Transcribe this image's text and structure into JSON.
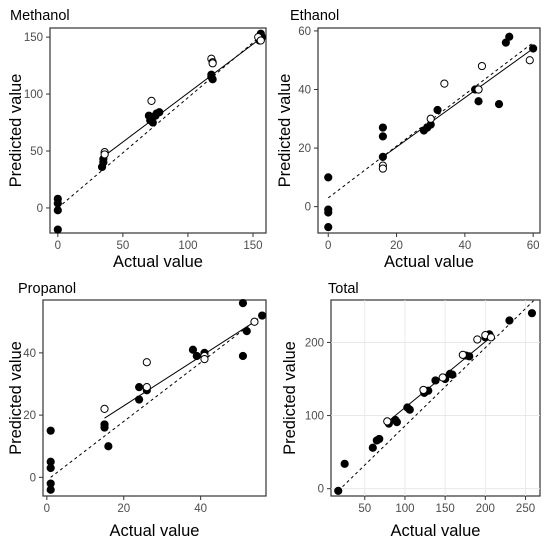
{
  "chart_data": [
    {
      "type": "scatter",
      "title": "Methanol",
      "xlabel": "Actual value",
      "ylabel": "Predicted value",
      "xlim": [
        -6,
        160
      ],
      "ylim": [
        -22,
        158
      ],
      "xticks": [
        0,
        50,
        100,
        150
      ],
      "yticks": [
        0,
        50,
        100,
        150
      ],
      "grid": false,
      "series": [
        {
          "marker": "filled",
          "points": [
            [
              0,
              8
            ],
            [
              0,
              4
            ],
            [
              0,
              -2
            ],
            [
              0,
              -19
            ],
            [
              34,
              36
            ],
            [
              35,
              40
            ],
            [
              35,
              43
            ],
            [
              70,
              81
            ],
            [
              71,
              77
            ],
            [
              73,
              75
            ],
            [
              75,
              81
            ],
            [
              76,
              83
            ],
            [
              78,
              84
            ],
            [
              118,
              117
            ],
            [
              118,
              115
            ],
            [
              119,
              113
            ],
            [
              155,
              150
            ],
            [
              155,
              147
            ],
            [
              156,
              153
            ],
            [
              157,
              150
            ]
          ]
        },
        {
          "marker": "open",
          "points": [
            [
              36,
              49
            ],
            [
              36,
              47
            ],
            [
              72,
              94
            ],
            [
              118,
              131
            ],
            [
              119,
              128
            ],
            [
              119,
              127
            ],
            [
              154,
              150
            ],
            [
              156,
              147
            ]
          ]
        }
      ],
      "lines": [
        {
          "style": "dashed",
          "from": [
            0,
            0
          ],
          "to": [
            157,
            152
          ]
        },
        {
          "style": "solid",
          "from": [
            35,
            45
          ],
          "to": [
            156,
            149
          ]
        }
      ]
    },
    {
      "type": "scatter",
      "title": "Ethanol",
      "xlabel": "Actual value",
      "ylabel": "Predicted value",
      "xlim": [
        -3,
        62
      ],
      "ylim": [
        -9,
        61
      ],
      "xticks": [
        0,
        20,
        40,
        60
      ],
      "yticks": [
        0,
        20,
        40,
        60
      ],
      "grid": false,
      "series": [
        {
          "marker": "filled",
          "points": [
            [
              0,
              10
            ],
            [
              0,
              -1
            ],
            [
              0,
              -2
            ],
            [
              0,
              -7
            ],
            [
              16,
              27
            ],
            [
              16,
              24
            ],
            [
              16,
              17
            ],
            [
              28,
              26
            ],
            [
              29,
              27
            ],
            [
              30,
              28
            ],
            [
              32,
              33
            ],
            [
              43,
              40
            ],
            [
              44,
              40
            ],
            [
              44,
              36
            ],
            [
              50,
              35
            ],
            [
              52,
              56
            ],
            [
              53,
              58
            ],
            [
              60,
              54
            ]
          ]
        },
        {
          "marker": "open",
          "points": [
            [
              16,
              14
            ],
            [
              16,
              13
            ],
            [
              30,
              30
            ],
            [
              34,
              42
            ],
            [
              44,
              40
            ],
            [
              45,
              48
            ],
            [
              59,
              50
            ]
          ]
        }
      ],
      "lines": [
        {
          "style": "dashed",
          "from": [
            0,
            3
          ],
          "to": [
            60,
            56
          ]
        },
        {
          "style": "solid",
          "from": [
            16,
            17
          ],
          "to": [
            60,
            54
          ]
        }
      ]
    },
    {
      "type": "scatter",
      "title": "Propanol",
      "xlabel": "Actual value",
      "ylabel": "Predicted value",
      "xlim": [
        -1,
        57
      ],
      "ylim": [
        -6,
        57
      ],
      "xticks": [
        0,
        20,
        40
      ],
      "yticks": [
        0,
        20,
        40
      ],
      "grid": false,
      "series": [
        {
          "marker": "filled",
          "points": [
            [
              1,
              15
            ],
            [
              1,
              5
            ],
            [
              1,
              3
            ],
            [
              1,
              -2
            ],
            [
              1,
              -4
            ],
            [
              15,
              17
            ],
            [
              15,
              16
            ],
            [
              16,
              10
            ],
            [
              24,
              29
            ],
            [
              24,
              25
            ],
            [
              26,
              28
            ],
            [
              38,
              41
            ],
            [
              39,
              39
            ],
            [
              41,
              40
            ],
            [
              51,
              56
            ],
            [
              51,
              39
            ],
            [
              52,
              47
            ],
            [
              56,
              52
            ]
          ]
        },
        {
          "marker": "open",
          "points": [
            [
              15,
              22
            ],
            [
              26,
              37
            ],
            [
              26,
              29
            ],
            [
              41,
              39
            ],
            [
              41,
              38
            ],
            [
              54,
              50
            ]
          ]
        }
      ],
      "lines": [
        {
          "style": "dashed",
          "from": [
            1,
            0
          ],
          "to": [
            56,
            52
          ]
        },
        {
          "style": "solid",
          "from": [
            15,
            19
          ],
          "to": [
            54,
            50
          ]
        }
      ]
    },
    {
      "type": "scatter",
      "title": "Total",
      "xlabel": "Actual value",
      "ylabel": "Predicted value",
      "xlim": [
        8,
        268
      ],
      "ylim": [
        -10,
        258
      ],
      "xticks": [
        50,
        100,
        150,
        200,
        250
      ],
      "yticks": [
        0,
        100,
        200
      ],
      "grid": true,
      "series": [
        {
          "marker": "filled",
          "points": [
            [
              17,
              -3
            ],
            [
              25,
              34
            ],
            [
              60,
              56
            ],
            [
              65,
              66
            ],
            [
              68,
              68
            ],
            [
              80,
              89
            ],
            [
              88,
              94
            ],
            [
              90,
              91
            ],
            [
              103,
              111
            ],
            [
              106,
              108
            ],
            [
              124,
              131
            ],
            [
              129,
              134
            ],
            [
              138,
              148
            ],
            [
              150,
              150
            ],
            [
              156,
              157
            ],
            [
              159,
              156
            ],
            [
              176,
              182
            ],
            [
              180,
              181
            ],
            [
              200,
              207
            ],
            [
              205,
              211
            ],
            [
              230,
              230
            ],
            [
              258,
              240
            ]
          ]
        },
        {
          "marker": "open",
          "points": [
            [
              78,
              92
            ],
            [
              123,
              135
            ],
            [
              147,
              152
            ],
            [
              172,
              183
            ],
            [
              190,
              204
            ],
            [
              200,
              210
            ],
            [
              207,
              207
            ]
          ]
        }
      ],
      "lines": [
        {
          "style": "dashed",
          "from": [
            17,
            -3
          ],
          "to": [
            260,
            257
          ]
        },
        {
          "style": "solid",
          "from": [
            78,
            91
          ],
          "to": [
            210,
            210
          ]
        }
      ]
    }
  ]
}
